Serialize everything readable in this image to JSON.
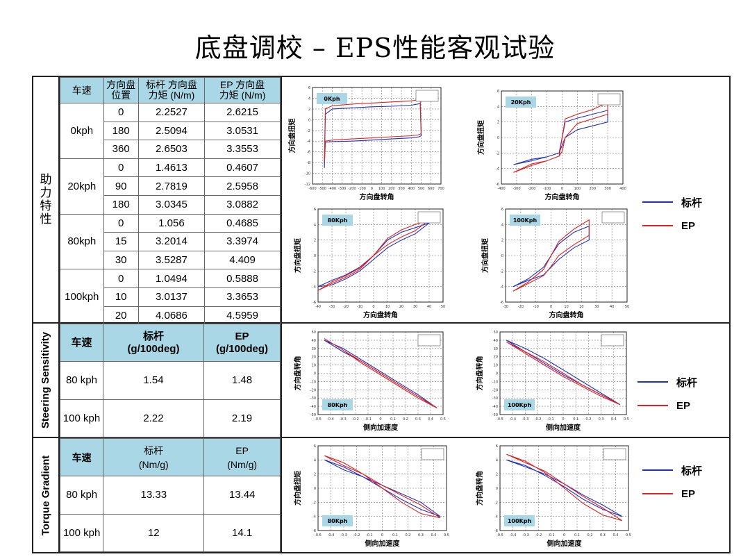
{
  "title": "底盘调校 – EPS性能客观试验",
  "sections": {
    "assist": "助力特性",
    "sensitivity": "Steering Sensitivity",
    "gradient": "Torque Gradient"
  },
  "assist_table": {
    "headers": [
      "车速",
      "方向盘\n位置",
      "标杆 方向盘\n力矩 (N/m)",
      "EP 方向盘\n力矩 (N/m)"
    ],
    "groups": [
      {
        "speed": "0kph",
        "rows": [
          [
            "0",
            "2.2527",
            "2.6215"
          ],
          [
            "180",
            "2.5094",
            "3.0531"
          ],
          [
            "360",
            "2.6503",
            "3.3553"
          ]
        ]
      },
      {
        "speed": "20kph",
        "rows": [
          [
            "0",
            "1.4613",
            "0.4607"
          ],
          [
            "90",
            "2.7819",
            "2.5958"
          ],
          [
            "180",
            "3.0345",
            "3.0882"
          ]
        ]
      },
      {
        "speed": "80kph",
        "rows": [
          [
            "0",
            "1.056",
            "0.4685"
          ],
          [
            "15",
            "3.2014",
            "3.3974"
          ],
          [
            "30",
            "3.5287",
            "4.409"
          ]
        ]
      },
      {
        "speed": "100kph",
        "rows": [
          [
            "0",
            "1.0494",
            "0.5888"
          ],
          [
            "10",
            "3.0137",
            "3.3653"
          ],
          [
            "20",
            "4.0686",
            "4.5959"
          ]
        ]
      }
    ]
  },
  "sensitivity_table": {
    "headers": [
      "车速",
      "标杆\n(g/100deg)",
      "EP\n(g/100deg)"
    ],
    "rows": [
      [
        "80 kph",
        "1.54",
        "1.48"
      ],
      [
        "100 kph",
        "2.22",
        "2.19"
      ]
    ]
  },
  "gradient_table": {
    "headers": [
      "车速",
      "标杆\n(Nm/g)",
      "EP\n(Nm/g)"
    ],
    "rows": [
      [
        "80 kph",
        "13.33",
        "13.44"
      ],
      [
        "100 kph",
        "12",
        "14.1"
      ]
    ]
  },
  "legend": {
    "benchmark": "标杆",
    "ep": "EP",
    "benchmark_color": "#1f2fbf",
    "ep_color": "#e02020"
  },
  "chart_data": [
    {
      "type": "line",
      "name": "0Kph",
      "xlabel": "方向盘转角",
      "ylabel": "方向盘扭矩",
      "xlim": [
        -600,
        700
      ],
      "ylim": [
        -12,
        6
      ],
      "xticks": [
        -600,
        -500,
        -400,
        -300,
        -200,
        -100,
        0,
        100,
        200,
        300,
        400,
        500,
        600,
        700
      ],
      "yticks": [
        -12,
        -10,
        -8,
        -6,
        -4,
        -2,
        0,
        2,
        4,
        6
      ],
      "series": [
        {
          "name": "标杆",
          "x": [
            -480,
            -470,
            -400,
            -200,
            0,
            200,
            400,
            490,
            500,
            480,
            400,
            200,
            0,
            -200,
            -400,
            -470,
            -480
          ],
          "y": [
            -9,
            1,
            2,
            2.2,
            2.4,
            2.5,
            2.7,
            3,
            -3,
            -3.2,
            -3.4,
            -3.6,
            -3.8,
            -4,
            -4.1,
            -4.2,
            -9
          ]
        },
        {
          "name": "EP",
          "x": [
            -480,
            -470,
            -400,
            -200,
            0,
            200,
            400,
            490,
            500,
            480,
            400,
            200,
            0,
            -200,
            -400,
            -470,
            -480
          ],
          "y": [
            -8,
            2,
            2.6,
            2.9,
            3.1,
            3.3,
            3.5,
            3.8,
            -2.6,
            -2.8,
            -3,
            -3.2,
            -3.4,
            -3.6,
            -3.8,
            -4,
            -8
          ]
        }
      ]
    },
    {
      "type": "line",
      "name": "20Kph",
      "xlabel": "方向盘转角",
      "ylabel": "方向盘扭矩",
      "xlim": [
        -400,
        400
      ],
      "ylim": [
        -6,
        6
      ],
      "xticks": [
        -400,
        -300,
        -200,
        -100,
        0,
        100,
        200,
        300,
        400
      ],
      "yticks": [
        -6,
        -4,
        -2,
        0,
        2,
        4,
        6
      ],
      "series": [
        {
          "name": "标杆",
          "x": [
            -320,
            -200,
            -100,
            -20,
            0,
            20,
            100,
            200,
            300,
            300,
            200,
            100,
            20,
            0,
            -20,
            -100,
            -200,
            -320
          ],
          "y": [
            -3.5,
            -3,
            -2.5,
            -2,
            0,
            2,
            2.5,
            3,
            3.5,
            2,
            1.5,
            1,
            0,
            -1,
            -2,
            -2.5,
            -2.8,
            -3.5
          ]
        },
        {
          "name": "EP",
          "x": [
            -320,
            -200,
            -100,
            -20,
            0,
            20,
            100,
            200,
            300,
            300,
            200,
            100,
            20,
            0,
            -20,
            -100,
            -200,
            -320
          ],
          "y": [
            -4.5,
            -3.6,
            -3,
            -2.4,
            0,
            2.4,
            3,
            3.6,
            4.5,
            3,
            2.4,
            1.8,
            0,
            -1.8,
            -2.4,
            -3,
            -3.4,
            -4.5
          ]
        }
      ]
    },
    {
      "type": "line",
      "name": "80Kph",
      "xlabel": "方向盘转角",
      "ylabel": "方向盘扭矩",
      "xlim": [
        -40,
        50
      ],
      "ylim": [
        -6,
        6
      ],
      "xticks": [
        -40,
        -30,
        -20,
        -10,
        0,
        10,
        20,
        30,
        40,
        50
      ],
      "yticks": [
        -6,
        -4,
        -2,
        0,
        2,
        4,
        6
      ],
      "series": [
        {
          "name": "标杆",
          "x": [
            -40,
            -30,
            -20,
            -10,
            0,
            10,
            20,
            30,
            40,
            30,
            20,
            10,
            0,
            -10,
            -20,
            -30,
            -40
          ],
          "y": [
            -4,
            -3.2,
            -2.5,
            -1.5,
            0,
            2,
            3,
            3.6,
            4.2,
            2.8,
            2,
            1,
            -0.5,
            -2,
            -3,
            -3.8,
            -4
          ]
        },
        {
          "name": "EP",
          "x": [
            -40,
            -30,
            -20,
            -10,
            0,
            10,
            20,
            30,
            40,
            30,
            20,
            10,
            0,
            -10,
            -20,
            -30,
            -40
          ],
          "y": [
            -4.5,
            -3.6,
            -2.8,
            -1.8,
            0,
            2.2,
            3.3,
            4,
            4.6,
            3.2,
            2.4,
            1.4,
            0,
            -1.6,
            -2.6,
            -3.4,
            -4.5
          ]
        }
      ]
    },
    {
      "type": "line",
      "name": "100Kph",
      "xlabel": "方向盘转角",
      "ylabel": "方向盘扭矩",
      "xlim": [
        -30,
        50
      ],
      "ylim": [
        -6,
        6
      ],
      "xticks": [
        -30,
        -20,
        -10,
        0,
        10,
        20,
        30,
        40,
        50
      ],
      "yticks": [
        -6,
        -4,
        -2,
        0,
        2,
        4,
        6
      ],
      "series": [
        {
          "name": "标杆",
          "x": [
            -25,
            -15,
            -5,
            0,
            5,
            15,
            25,
            25,
            15,
            5,
            0,
            -5,
            -15,
            -25
          ],
          "y": [
            -4,
            -3,
            -1.5,
            0,
            1.5,
            3,
            3.8,
            2,
            1,
            -0.5,
            -1.5,
            -2.5,
            -3.2,
            -4
          ]
        },
        {
          "name": "EP",
          "x": [
            -25,
            -15,
            -5,
            0,
            5,
            15,
            25,
            25,
            15,
            5,
            0,
            -5,
            -15,
            -25
          ],
          "y": [
            -4.6,
            -3.4,
            -1.8,
            0,
            1.8,
            3.4,
            4.6,
            2.6,
            1.4,
            0,
            -1.4,
            -2.6,
            -3.6,
            -4.6
          ]
        }
      ]
    },
    {
      "type": "line",
      "name": "80Kph",
      "xlabel": "侧向加速度",
      "ylabel": "方向盘转角",
      "xlim": [
        -0.5,
        0.5
      ],
      "ylim": [
        -50,
        50
      ],
      "xticks": [
        -0.5,
        -0.4,
        -0.3,
        -0.2,
        -0.1,
        0,
        0.1,
        0.2,
        0.3,
        0.4,
        0.5
      ],
      "yticks": [
        -50,
        -40,
        -30,
        -20,
        -10,
        0,
        10,
        20,
        30,
        40,
        50
      ],
      "series": [
        {
          "name": "标杆",
          "x": [
            -0.45,
            -0.3,
            -0.15,
            0,
            0.15,
            0.3,
            0.45,
            0.3,
            0.15,
            0,
            -0.15,
            -0.3,
            -0.45
          ],
          "y": [
            40,
            30,
            16,
            2,
            -12,
            -26,
            -42,
            -28,
            -14,
            0,
            14,
            26,
            40
          ]
        },
        {
          "name": "EP",
          "x": [
            -0.45,
            -0.3,
            -0.15,
            0,
            0.15,
            0.3,
            0.45,
            0.3,
            0.15,
            0,
            -0.15,
            -0.3,
            -0.45
          ],
          "y": [
            42,
            28,
            14,
            0,
            -14,
            -28,
            -42,
            -30,
            -16,
            -2,
            12,
            28,
            42
          ]
        }
      ]
    },
    {
      "type": "line",
      "name": "100Kph",
      "xlabel": "侧向加速度",
      "ylabel": "方向盘转角",
      "xlim": [
        -0.5,
        0.5
      ],
      "ylim": [
        -50,
        50
      ],
      "xticks": [
        -0.5,
        -0.4,
        -0.3,
        -0.2,
        -0.1,
        0,
        0.1,
        0.2,
        0.3,
        0.4,
        0.5
      ],
      "yticks": [
        -50,
        -40,
        -30,
        -20,
        -10,
        0,
        10,
        20,
        30,
        40,
        50
      ],
      "series": [
        {
          "name": "标杆",
          "x": [
            -0.45,
            -0.3,
            -0.15,
            0,
            0.15,
            0.3,
            0.45,
            0.3,
            0.15,
            0,
            -0.15,
            -0.3,
            -0.45
          ],
          "y": [
            40,
            30,
            18,
            4,
            -10,
            -24,
            -38,
            -26,
            -14,
            -2,
            12,
            26,
            40
          ]
        },
        {
          "name": "EP",
          "x": [
            -0.45,
            -0.3,
            -0.15,
            0,
            0.15,
            0.3,
            0.45,
            0.3,
            0.15,
            0,
            -0.15,
            -0.3,
            -0.45
          ],
          "y": [
            38,
            26,
            14,
            0,
            -14,
            -26,
            -38,
            -28,
            -16,
            -4,
            10,
            24,
            38
          ]
        }
      ]
    },
    {
      "type": "line",
      "name": "80Kph",
      "xlabel": "侧向加速度",
      "ylabel": "方向盘扭矩",
      "xlim": [
        -0.5,
        0.5
      ],
      "ylim": [
        -6,
        6
      ],
      "xticks": [
        -0.5,
        -0.4,
        -0.3,
        -0.2,
        -0.1,
        0,
        0.1,
        0.2,
        0.3,
        0.4,
        0.5
      ],
      "yticks": [
        -6,
        -4,
        -2,
        0,
        2,
        4,
        6
      ],
      "series": [
        {
          "name": "标杆",
          "x": [
            -0.45,
            -0.3,
            -0.15,
            0,
            0.15,
            0.3,
            0.45,
            0.3,
            0.15,
            0,
            -0.15,
            -0.3,
            -0.45
          ],
          "y": [
            4,
            3,
            1.6,
            0,
            -1.6,
            -3,
            -4,
            -2,
            -0.8,
            0.4,
            1.6,
            2.6,
            4
          ]
        },
        {
          "name": "EP",
          "x": [
            -0.45,
            -0.3,
            -0.15,
            0,
            0.15,
            0.3,
            0.45,
            0.3,
            0.15,
            0,
            -0.15,
            -0.3,
            -0.45
          ],
          "y": [
            4.6,
            3.6,
            2,
            0,
            -2,
            -3.6,
            -4.2,
            -2.4,
            -1,
            0.4,
            2,
            3.2,
            4.6
          ]
        }
      ]
    },
    {
      "type": "line",
      "name": "100Kph",
      "xlabel": "侧向加速度",
      "ylabel": "方向盘转角",
      "xlim": [
        -0.5,
        0.5
      ],
      "ylim": [
        -6,
        6
      ],
      "xticks": [
        -0.5,
        -0.4,
        -0.3,
        -0.2,
        -0.1,
        0,
        0.1,
        0.2,
        0.3,
        0.4,
        0.5
      ],
      "yticks": [
        -6,
        -4,
        -2,
        0,
        2,
        4,
        6
      ],
      "series": [
        {
          "name": "标杆",
          "x": [
            -0.45,
            -0.3,
            -0.15,
            0,
            0.15,
            0.3,
            0.45,
            0.3,
            0.15,
            0,
            -0.15,
            -0.3,
            -0.45
          ],
          "y": [
            4,
            3.2,
            1.8,
            0.2,
            -1.6,
            -3,
            -4,
            -2.4,
            -1,
            0.6,
            2,
            3,
            4
          ]
        },
        {
          "name": "EP",
          "x": [
            -0.45,
            -0.3,
            -0.15,
            0,
            0.15,
            0.3,
            0.45,
            0.3,
            0.15,
            0,
            -0.15,
            -0.3,
            -0.45
          ],
          "y": [
            4.8,
            3.8,
            2.2,
            0,
            -2.2,
            -3.8,
            -4.6,
            -2.8,
            -1.2,
            0.6,
            2.4,
            3.6,
            4.8
          ]
        }
      ]
    }
  ]
}
